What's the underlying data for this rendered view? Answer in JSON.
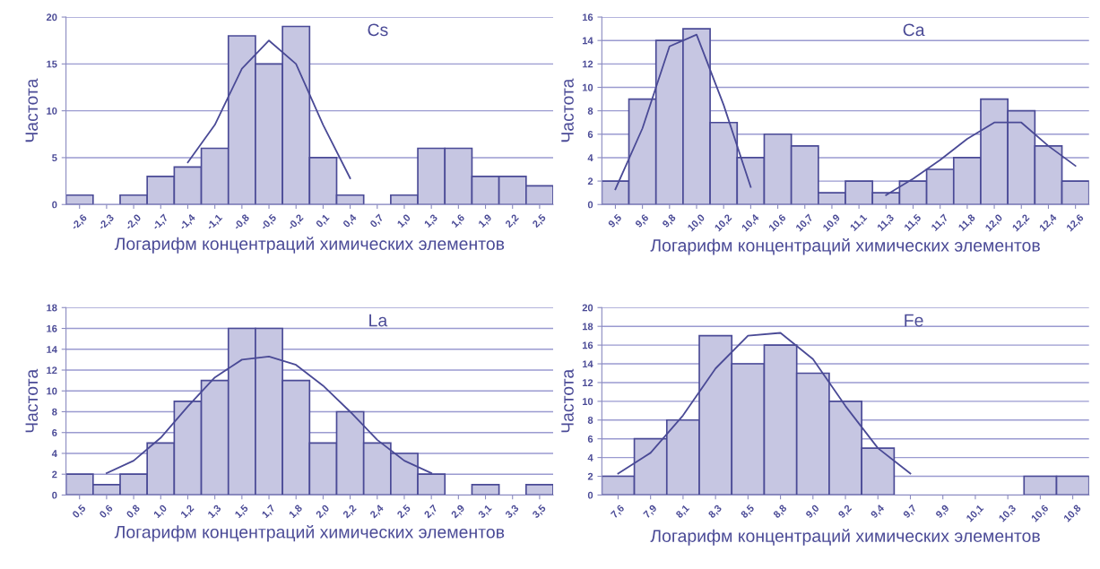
{
  "chart_data": [
    {
      "type": "bar",
      "title": "Cs",
      "xlabel": "Логарифм концентраций химических элементов",
      "ylabel": "Частота",
      "categories": [
        "-2,6",
        "-2,3",
        "-2,0",
        "-1,7",
        "-1,4",
        "-1,1",
        "-0,8",
        "-0,5",
        "-0,2",
        "0,1",
        "0,4",
        "0,7",
        "1,0",
        "1,3",
        "1,6",
        "1,9",
        "2,2",
        "2,5"
      ],
      "series": [
        {
          "color": "#c6c6e2",
          "values": [
            1,
            0,
            1,
            3,
            4,
            6,
            18,
            15,
            19,
            5,
            1,
            0,
            1,
            6,
            6,
            3,
            3,
            2
          ]
        },
        {
          "type": "line",
          "color": "#4a4a96",
          "values": [
            null,
            null,
            null,
            null,
            4.5,
            8.5,
            14.5,
            17.5,
            15,
            8.5,
            2.8,
            null,
            null,
            null,
            null,
            null,
            null,
            null
          ]
        }
      ],
      "ylim": [
        0,
        20
      ],
      "yticks": [
        0,
        5,
        10,
        15,
        20
      ],
      "grid": "y",
      "legend": false
    },
    {
      "type": "bar",
      "title": "Ca",
      "xlabel": "Логарифм концентраций химических элементов",
      "ylabel": "Частота",
      "categories": [
        "9,5",
        "9,6",
        "9,8",
        "10,0",
        "10,2",
        "10,4",
        "10,6",
        "10,7",
        "10,9",
        "11,1",
        "11,3",
        "11,5",
        "11,7",
        "11,8",
        "12,0",
        "12,2",
        "12,4",
        "12,6"
      ],
      "series": [
        {
          "color": "#c6c6e2",
          "values": [
            2,
            9,
            14,
            15,
            7,
            4,
            6,
            5,
            1,
            2,
            1,
            2,
            3,
            4,
            9,
            8,
            5,
            2
          ]
        },
        {
          "type": "line",
          "color": "#4a4a96",
          "values": [
            1.3,
            6.5,
            13.5,
            14.5,
            8.5,
            1.5,
            null,
            null,
            null,
            null,
            null,
            null,
            null,
            null,
            null,
            null,
            null,
            null
          ]
        },
        {
          "type": "line",
          "color": "#4a4a96",
          "values": [
            null,
            null,
            null,
            null,
            null,
            null,
            null,
            null,
            null,
            null,
            0.8,
            2.2,
            3.8,
            5.6,
            7,
            7,
            5,
            3.3
          ]
        }
      ],
      "ylim": [
        0,
        16
      ],
      "yticks": [
        0,
        2,
        4,
        6,
        8,
        10,
        12,
        14,
        16
      ],
      "grid": "y",
      "legend": false
    },
    {
      "type": "bar",
      "title": "La",
      "xlabel": "Логарифм концентраций химических элементов",
      "ylabel": "Частота",
      "categories": [
        "0,5",
        "0,6",
        "0,8",
        "1,0",
        "1,2",
        "1,3",
        "1,5",
        "1,7",
        "1,8",
        "2,0",
        "2,2",
        "2,4",
        "2,5",
        "2,7",
        "2,9",
        "3,1",
        "3,3",
        "3,5"
      ],
      "series": [
        {
          "color": "#c6c6e2",
          "values": [
            2,
            1,
            2,
            5,
            9,
            11,
            16,
            16,
            11,
            5,
            8,
            5,
            4,
            2,
            0,
            1,
            0,
            1
          ]
        },
        {
          "type": "line",
          "color": "#4a4a96",
          "values": [
            null,
            2.1,
            3.3,
            5.5,
            8.5,
            11.3,
            13,
            13.3,
            12.5,
            10.5,
            8,
            5.3,
            3.3,
            2.1,
            null,
            null,
            null,
            null
          ]
        }
      ],
      "ylim": [
        0,
        18
      ],
      "yticks": [
        0,
        2,
        4,
        6,
        8,
        10,
        12,
        14,
        16,
        18
      ],
      "grid": "y",
      "legend": false
    },
    {
      "type": "bar",
      "title": "Fe",
      "xlabel": "Логарифм концентраций химических элементов",
      "ylabel": "Частота",
      "categories": [
        "7,6",
        "7,9",
        "8,1",
        "8,3",
        "8,5",
        "8,8",
        "9,0",
        "9,2",
        "9,4",
        "9,7",
        "9,9",
        "10,1",
        "10,3",
        "10,6",
        "10,8"
      ],
      "series": [
        {
          "color": "#c6c6e2",
          "values": [
            2,
            6,
            8,
            17,
            14,
            16,
            13,
            10,
            5,
            0,
            0,
            0,
            0,
            2,
            2
          ]
        },
        {
          "type": "line",
          "color": "#4a4a96",
          "values": [
            2.3,
            4.5,
            8.5,
            13.5,
            17,
            17.3,
            14.5,
            9.5,
            5,
            2.3,
            null,
            null,
            null,
            null,
            null
          ]
        }
      ],
      "ylim": [
        0,
        20
      ],
      "yticks": [
        0,
        2,
        4,
        6,
        8,
        10,
        12,
        14,
        16,
        18,
        20
      ],
      "grid": "y",
      "legend": false
    }
  ]
}
